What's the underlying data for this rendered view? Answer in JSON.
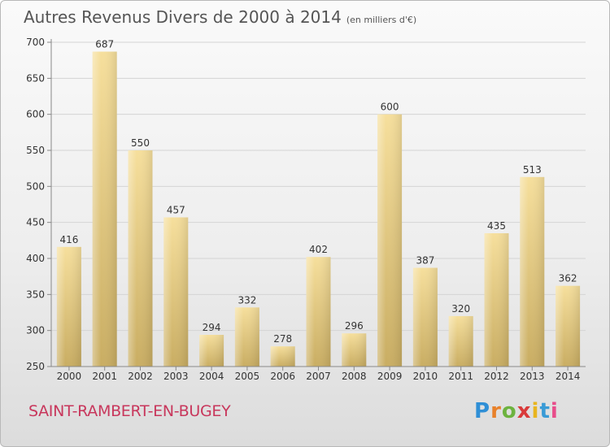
{
  "title": "Autres Revenus Divers de 2000 à 2014",
  "unit": "(en milliers d'€)",
  "place": "SAINT-RAMBERT-EN-BUGEY",
  "brand": {
    "letters": [
      "P",
      "r",
      "o",
      "x",
      "i",
      "t",
      "i"
    ],
    "colors": [
      "#2f8fd6",
      "#e8812a",
      "#6db33f",
      "#d93a3a",
      "#e8b51f",
      "#3a9bd6",
      "#e84d8a"
    ]
  },
  "chart_data": {
    "type": "bar",
    "title": "Autres Revenus Divers de 2000 à 2014",
    "subtitle": "(en milliers d'€)",
    "categories": [
      "2000",
      "2001",
      "2002",
      "2003",
      "2004",
      "2005",
      "2006",
      "2007",
      "2008",
      "2009",
      "2010",
      "2011",
      "2012",
      "2013",
      "2014"
    ],
    "values": [
      416,
      687,
      550,
      457,
      294,
      332,
      278,
      402,
      296,
      600,
      387,
      320,
      435,
      513,
      362
    ],
    "ylim": [
      250,
      700
    ],
    "yticks": [
      250,
      300,
      350,
      400,
      450,
      500,
      550,
      600,
      650,
      700
    ],
    "xlabel": "",
    "ylabel": "",
    "grid": true,
    "bar_color": "#e6c77a"
  }
}
